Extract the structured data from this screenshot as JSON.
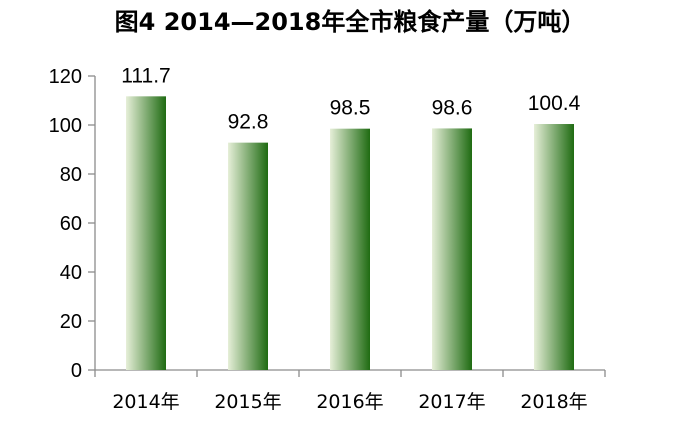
{
  "chart_data": {
    "type": "bar",
    "title": "图4  2014—2018年全市粮食产量（万吨）",
    "categories": [
      "2014年",
      "2015年",
      "2016年",
      "2017年",
      "2018年"
    ],
    "values": [
      111.7,
      92.8,
      98.5,
      98.6,
      100.4
    ],
    "data_labels": [
      "111.7",
      "92.8",
      "98.5",
      "98.6",
      "100.4"
    ],
    "yticks": [
      0,
      20,
      40,
      60,
      80,
      100,
      120
    ],
    "ylim": [
      0,
      120
    ],
    "xlabel": "",
    "ylabel": "",
    "grid": false,
    "legend": "none",
    "bar_gradient": [
      "#e6efd8",
      "#1f6b12"
    ],
    "axis_color": "#8c8c8c"
  }
}
